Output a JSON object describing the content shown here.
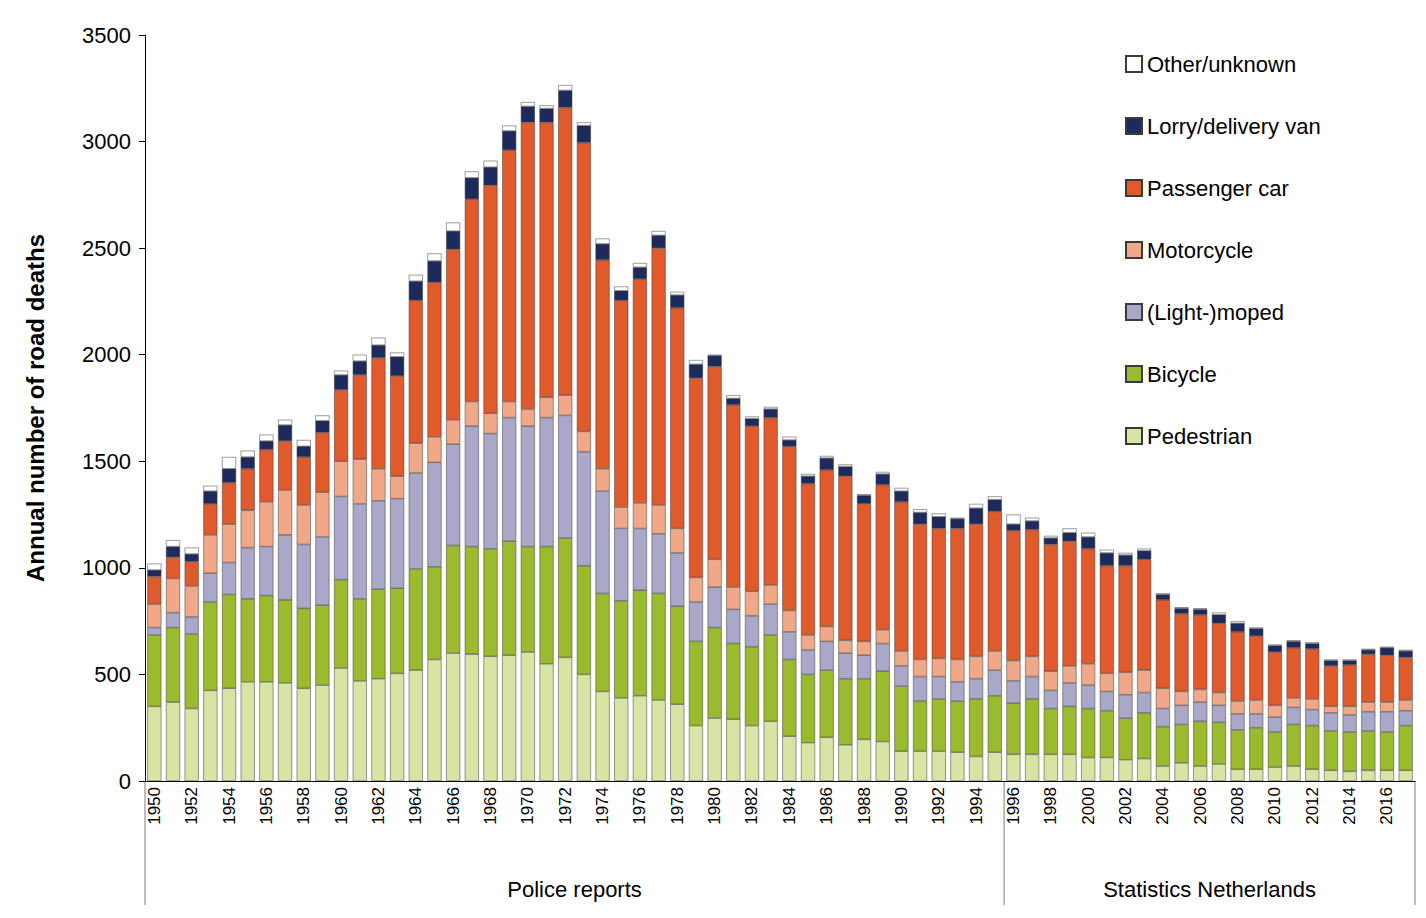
{
  "chart_data": {
    "type": "bar",
    "stacked": true,
    "grid": false,
    "legend": "top-right",
    "y_label": "Annual number of road deaths",
    "ylim": [
      0,
      3500
    ],
    "yticks": [
      0,
      500,
      1000,
      1500,
      2000,
      2500,
      3000,
      3500
    ],
    "categories": [
      "1950",
      null,
      "1952",
      null,
      "1954",
      null,
      "1956",
      null,
      "1958",
      null,
      "1960",
      null,
      "1962",
      null,
      "1964",
      null,
      "1966",
      null,
      "1968",
      null,
      "1970",
      null,
      "1972",
      null,
      "1974",
      null,
      "1976",
      null,
      "1978",
      null,
      "1980",
      null,
      "1982",
      null,
      "1984",
      null,
      "1986",
      null,
      "1988",
      null,
      "1990",
      null,
      "1992",
      null,
      "1994",
      null,
      "1996",
      null,
      "1998",
      null,
      "2000",
      null,
      "2002",
      null,
      "2004",
      null,
      "2006",
      null,
      "2008",
      null,
      "2010",
      null,
      "2012",
      null,
      "2014",
      null,
      "2016",
      null
    ],
    "category_groups": [
      {
        "label": "Police reports",
        "count": 46
      },
      {
        "label": "Statistics Netherlands",
        "count": 22
      }
    ],
    "series": [
      {
        "name": "Pedestrian",
        "color": "#d7e4a3",
        "values": [
          350,
          370,
          340,
          425,
          435,
          465,
          465,
          460,
          435,
          450,
          530,
          470,
          480,
          505,
          520,
          570,
          600,
          595,
          585,
          590,
          605,
          550,
          580,
          500,
          420,
          390,
          400,
          380,
          360,
          260,
          295,
          290,
          260,
          280,
          210,
          180,
          205,
          170,
          195,
          185,
          140,
          140,
          140,
          135,
          115,
          135,
          125,
          125,
          125,
          125,
          110,
          110,
          100,
          105,
          70,
          85,
          70,
          80,
          55,
          55,
          65,
          70,
          55,
          50,
          45,
          50,
          50,
          50
        ]
      },
      {
        "name": "Bicycle",
        "color": "#9bbb2f",
        "values": [
          335,
          350,
          350,
          415,
          440,
          390,
          405,
          390,
          375,
          375,
          415,
          385,
          420,
          400,
          475,
          435,
          505,
          505,
          505,
          535,
          495,
          550,
          560,
          510,
          460,
          455,
          495,
          500,
          460,
          395,
          425,
          355,
          370,
          405,
          360,
          320,
          315,
          310,
          285,
          330,
          305,
          235,
          245,
          240,
          270,
          265,
          240,
          260,
          215,
          225,
          230,
          220,
          195,
          215,
          185,
          180,
          210,
          195,
          185,
          195,
          165,
          195,
          205,
          185,
          185,
          185,
          180,
          210
        ]
      },
      {
        "name": "(Light-)moped",
        "color": "#a9a8c9",
        "values": [
          35,
          70,
          80,
          135,
          150,
          240,
          230,
          305,
          300,
          320,
          390,
          445,
          415,
          420,
          450,
          490,
          475,
          565,
          540,
          580,
          565,
          605,
          575,
          535,
          480,
          340,
          290,
          280,
          250,
          185,
          190,
          160,
          145,
          145,
          130,
          115,
          135,
          120,
          110,
          130,
          95,
          115,
          105,
          90,
          95,
          120,
          105,
          105,
          85,
          110,
          110,
          90,
          110,
          95,
          85,
          90,
          90,
          80,
          75,
          65,
          70,
          80,
          75,
          85,
          80,
          90,
          95,
          70
        ]
      },
      {
        "name": "Motorcycle",
        "color": "#f0a888",
        "values": [
          110,
          160,
          145,
          180,
          180,
          175,
          210,
          210,
          185,
          210,
          165,
          210,
          150,
          105,
          140,
          120,
          115,
          115,
          95,
          75,
          80,
          95,
          95,
          95,
          105,
          100,
          120,
          135,
          115,
          115,
          130,
          105,
          115,
          90,
          100,
          70,
          70,
          60,
          65,
          65,
          70,
          80,
          85,
          105,
          105,
          90,
          95,
          95,
          90,
          80,
          100,
          85,
          105,
          105,
          95,
          65,
          60,
          60,
          60,
          65,
          55,
          45,
          50,
          30,
          40,
          45,
          45,
          50
        ]
      },
      {
        "name": "Passenger car",
        "color": "#e05a2b",
        "values": [
          130,
          100,
          115,
          145,
          195,
          195,
          245,
          230,
          225,
          280,
          335,
          395,
          520,
          470,
          670,
          725,
          800,
          950,
          1070,
          1180,
          1345,
          1290,
          1350,
          1355,
          980,
          970,
          1050,
          1205,
          1035,
          935,
          905,
          855,
          775,
          785,
          770,
          710,
          735,
          770,
          645,
          680,
          700,
          635,
          610,
          615,
          620,
          655,
          610,
          595,
          595,
          585,
          540,
          505,
          500,
          520,
          415,
          365,
          350,
          325,
          325,
          300,
          250,
          235,
          235,
          190,
          195,
          225,
          220,
          200
        ]
      },
      {
        "name": "Lorry/delivery van",
        "color": "#1f2a5c",
        "values": [
          30,
          50,
          35,
          60,
          65,
          55,
          40,
          75,
          50,
          55,
          70,
          65,
          60,
          90,
          90,
          100,
          85,
          100,
          85,
          90,
          75,
          65,
          80,
          80,
          75,
          45,
          55,
          60,
          60,
          65,
          50,
          30,
          35,
          40,
          30,
          35,
          55,
          45,
          40,
          50,
          50,
          55,
          55,
          45,
          75,
          55,
          30,
          40,
          30,
          40,
          55,
          60,
          50,
          40,
          25,
          25,
          25,
          40,
          40,
          35,
          30,
          30,
          25,
          25,
          20,
          20,
          35,
          30
        ]
      },
      {
        "name": "Other/unknown",
        "color": "#ffffff",
        "values": [
          30,
          30,
          30,
          25,
          55,
          30,
          30,
          25,
          30,
          25,
          20,
          30,
          35,
          20,
          30,
          35,
          40,
          30,
          30,
          25,
          20,
          15,
          25,
          15,
          25,
          20,
          20,
          20,
          15,
          20,
          5,
          15,
          10,
          10,
          15,
          10,
          10,
          10,
          5,
          10,
          15,
          15,
          15,
          5,
          20,
          15,
          45,
          15,
          10,
          20,
          20,
          15,
          10,
          10,
          5,
          5,
          5,
          10,
          10,
          5,
          5,
          5,
          5,
          5,
          5,
          5,
          5,
          5
        ]
      }
    ]
  }
}
